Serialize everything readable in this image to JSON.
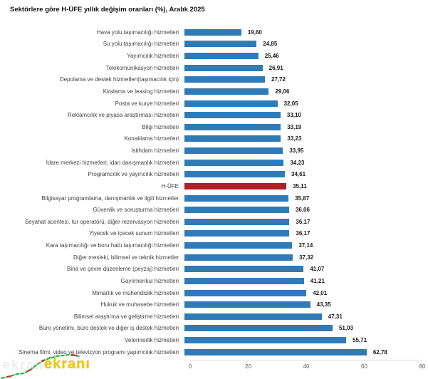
{
  "title": "Sektörlere göre H-ÜFE yıllık değişim oranları (%), Aralık 2025",
  "watermark": {
    "text": "ekranı",
    "ghost_text": "ekran",
    "text_color": "#f0c514"
  },
  "chart_data": {
    "type": "bar",
    "orientation": "horizontal",
    "title": "Sektörlere göre H-ÜFE yıllık değişim oranları (%), Aralık 2025",
    "xlabel": "",
    "ylabel": "",
    "xlim": [
      0,
      80
    ],
    "xticks": [
      "0",
      "20",
      "40",
      "60",
      "80"
    ],
    "grid": false,
    "legend": "none",
    "bar_color": "#2f7bb8",
    "highlight_color": "#b01f24",
    "highlight_index": 13,
    "categories": [
      "Hava yolu taşımacılığı hizmetleri",
      "Su yolu taşımacılığı hizmetleri",
      "Yayımcılık hizmetleri",
      "Telekomünikasyon hizmetleri",
      "Depolama ve destek hizmetleri(taşımacılık için)",
      "Kiralama ve leasing hizmetleri",
      "Posta ve kurye hizmetleri",
      "Reklamcılık ve piyasa araştırması hizmetleri",
      "Bilgi hizmetleri",
      "Konaklama hizmetleri",
      "İstihdam hizmetleri",
      "İdare merkezi hizmetleri; idari danışmanlık hizmetleri",
      "Programcılık ve yayıncılık hizmetleri",
      "H-ÜFE",
      "Bilgisayar programlama, danışmanlık ve ilgili hizmetler",
      "Güvenlik ve soruşturma hizmetleri",
      "Seyahat acentesi, tur operatörü, diğer rezervasyon hizmetleri",
      "Yiyecek ve içecek sunum hizmetleri",
      "Kara taşımacılığı ve boru hattı taşımacılığı hizmetleri",
      "Diğer mesleki, bilimsel ve teknik hizmetler",
      "Bina ve çevre düzenleme (peyzaj) hizmetleri",
      "Gayrimenkul hizmetleri",
      "Mimarlık ve mühendislik hizmetleri",
      "Hukuk ve muhasebe hizmetleri",
      "Bilimsel araştırma ve geliştirme hizmetleri",
      "Büro yönetimi, büro destek ve diğer iş destek hizmetleri",
      "Veterinerlik hizmetleri",
      "Sinema filmi, video ve televizyon programı yapımcılık hizmetleri"
    ],
    "values": [
      19.6,
      24.85,
      25.46,
      26.91,
      27.72,
      29.06,
      32.05,
      33.1,
      33.19,
      33.23,
      33.95,
      34.23,
      34.61,
      35.11,
      35.87,
      36.06,
      36.17,
      36.17,
      37.14,
      37.32,
      41.07,
      41.21,
      42.01,
      43.35,
      47.31,
      51.03,
      55.71,
      62.78
    ],
    "display_values": [
      "19,60",
      "24,85",
      "25,46",
      "26,91",
      "27,72",
      "29,06",
      "32,05",
      "33,10",
      "33,19",
      "33,23",
      "33,95",
      "34,23",
      "34,61",
      "35,11",
      "35,87",
      "36,06",
      "36,17",
      "36,17",
      "37,14",
      "37,32",
      "41,07",
      "41,21",
      "42,01",
      "43,35",
      "47,31",
      "51,03",
      "55,71",
      "62,78"
    ]
  }
}
